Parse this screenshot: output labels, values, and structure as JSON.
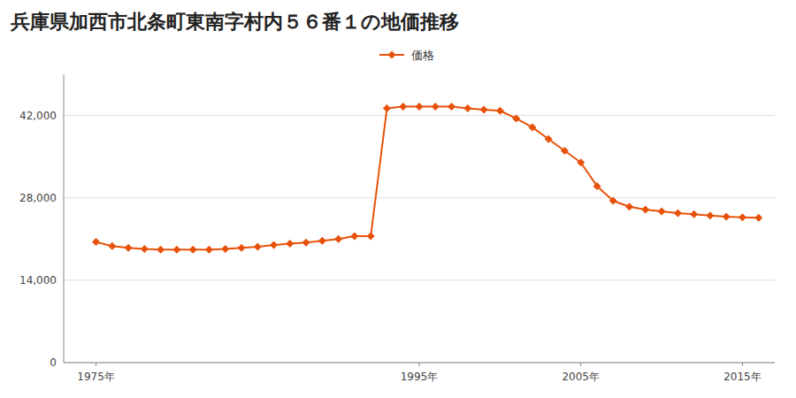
{
  "chart_data": {
    "type": "line",
    "title": "兵庫県加西市北条町東南字村内５６番１の地価推移",
    "x": [
      1975,
      1976,
      1977,
      1978,
      1979,
      1980,
      1981,
      1982,
      1983,
      1984,
      1985,
      1986,
      1987,
      1988,
      1989,
      1990,
      1991,
      1992,
      1993,
      1994,
      1995,
      1996,
      1997,
      1998,
      1999,
      2000,
      2001,
      2002,
      2003,
      2004,
      2005,
      2006,
      2007,
      2008,
      2009,
      2010,
      2011,
      2012,
      2013,
      2014,
      2015,
      2016
    ],
    "series": [
      {
        "name": "価格",
        "color": "#e8510a",
        "marker": "diamond",
        "line_style": "solid",
        "values": [
          20500,
          19800,
          19500,
          19300,
          19200,
          19200,
          19200,
          19200,
          19300,
          19500,
          19700,
          20000,
          20200,
          20400,
          20700,
          21000,
          21500,
          21500,
          43200,
          43500,
          43500,
          43500,
          43500,
          43200,
          43000,
          42800,
          41500,
          40000,
          38000,
          36000,
          34000,
          30000,
          27500,
          26500,
          26000,
          25700,
          25400,
          25200,
          25000,
          24800,
          24700,
          24600
        ]
      }
    ],
    "xlim": [
      1973,
      2017
    ],
    "xticks": [
      {
        "value": 1975,
        "label": "1975年"
      },
      {
        "value": 1995,
        "label": "1995年"
      },
      {
        "value": 2005,
        "label": "2005年"
      },
      {
        "value": 2015,
        "label": "2015年"
      }
    ],
    "ylim": [
      0,
      49000
    ],
    "yticks": [
      0,
      {
        "value": 14000,
        "label": "14,000"
      },
      {
        "value": 28000,
        "label": "28,000"
      },
      {
        "value": 42000,
        "label": "42,000"
      }
    ],
    "grid": true,
    "legend": "top"
  }
}
